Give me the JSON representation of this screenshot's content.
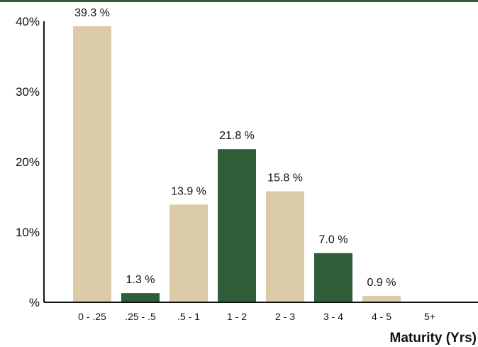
{
  "chart_data": {
    "type": "bar",
    "categories": [
      "0 - .25",
      ".25 - .5",
      ".5 - 1",
      "1 - 2",
      "2 - 3",
      "3 - 4",
      "4 - 5",
      "5+"
    ],
    "values": [
      39.3,
      1.3,
      13.9,
      21.8,
      15.8,
      7.0,
      0.9,
      0
    ],
    "data_labels": [
      "39.3 %",
      "1.3 %",
      "13.9 %",
      "21.8 %",
      "15.8 %",
      "7.0 %",
      "0.9 %",
      ""
    ],
    "bar_colors": [
      "#dccba7",
      "#2f5d3a",
      "#dccba7",
      "#2f5d3a",
      "#dccba7",
      "#2f5d3a",
      "#dccba7",
      "#2f5d3a"
    ],
    "y_ticks": [
      0,
      10,
      20,
      30,
      40
    ],
    "y_tick_labels": [
      "%",
      "10%",
      "20%",
      "30%",
      "40%"
    ],
    "ylim": [
      0,
      40
    ],
    "xlabel": "Maturity (Yrs)",
    "ylabel": "",
    "title": "",
    "grid": false,
    "legend": "none"
  },
  "colors": {
    "accent": "#2f5d3a",
    "tan": "#dccba7",
    "axis": "#111111"
  }
}
